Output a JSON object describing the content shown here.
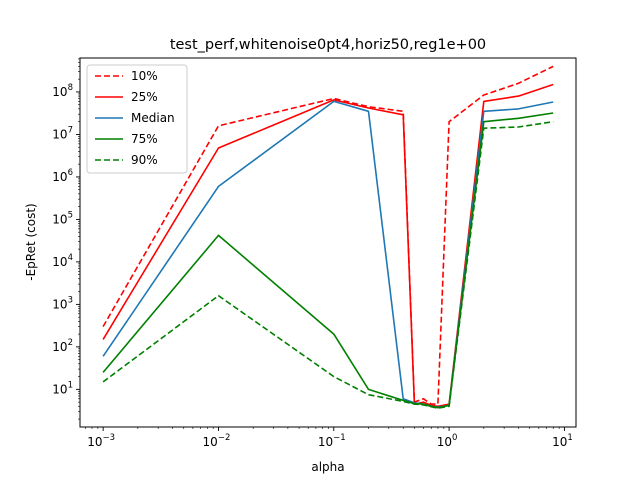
{
  "chart_data": {
    "type": "line",
    "title": "test_perf,whitenoise0pt4,horiz50,reg1e+00",
    "xlabel": "alpha",
    "ylabel": "-EpRet (cost)",
    "xscale": "log",
    "yscale": "log",
    "xlim": [
      0.00063,
      12.6
    ],
    "ylim": [
      1.3,
      630000000
    ],
    "x_ticks": [
      {
        "base": "10",
        "exp": "−3",
        "value": 0.001
      },
      {
        "base": "10",
        "exp": "−2",
        "value": 0.01
      },
      {
        "base": "10",
        "exp": "−1",
        "value": 0.1
      },
      {
        "base": "10",
        "exp": "0",
        "value": 1
      },
      {
        "base": "10",
        "exp": "1",
        "value": 10
      }
    ],
    "y_ticks": [
      {
        "base": "10",
        "exp": "1",
        "value": 10
      },
      {
        "base": "10",
        "exp": "2",
        "value": 100
      },
      {
        "base": "10",
        "exp": "3",
        "value": 1000
      },
      {
        "base": "10",
        "exp": "4",
        "value": 10000
      },
      {
        "base": "10",
        "exp": "5",
        "value": 100000
      },
      {
        "base": "10",
        "exp": "6",
        "value": 1000000
      },
      {
        "base": "10",
        "exp": "7",
        "value": 10000000
      },
      {
        "base": "10",
        "exp": "8",
        "value": 100000000
      }
    ],
    "grid": false,
    "legend_position": "top-left",
    "x": [
      0.001,
      0.01,
      0.1,
      0.2,
      0.4,
      0.5,
      0.6,
      0.7,
      0.8,
      1.0,
      2.0,
      4.0,
      8.0
    ],
    "series": [
      {
        "name": "10%",
        "color": "#ff0000",
        "dash": "dashed",
        "values": [
          300,
          16000000,
          70000000,
          45000000,
          35000000,
          5,
          6,
          4.5,
          4.5,
          20000000,
          85000000,
          160000000,
          400000000
        ]
      },
      {
        "name": "25%",
        "color": "#ff0000",
        "dash": "solid",
        "values": [
          150,
          4800000,
          65000000,
          42000000,
          29000000,
          4.5,
          5,
          4.2,
          4,
          4.5,
          60000000,
          80000000,
          150000000
        ]
      },
      {
        "name": "Median",
        "color": "#1f77b4",
        "dash": "solid",
        "values": [
          60,
          600000,
          60000000,
          35000000,
          6,
          4.8,
          4.5,
          4,
          3.8,
          4.2,
          35000000,
          40000000,
          58000000
        ]
      },
      {
        "name": "75%",
        "color": "#008000",
        "dash": "solid",
        "values": [
          25,
          42000,
          200,
          10,
          5.5,
          4.6,
          4.5,
          4,
          3.7,
          4.2,
          20000000,
          24000000,
          32000000
        ]
      },
      {
        "name": "90%",
        "color": "#008000",
        "dash": "dashed",
        "values": [
          15,
          1600,
          20,
          7.5,
          5.2,
          4.5,
          4.3,
          3.9,
          3.6,
          4,
          14000000,
          15000000,
          20000000
        ]
      }
    ]
  }
}
